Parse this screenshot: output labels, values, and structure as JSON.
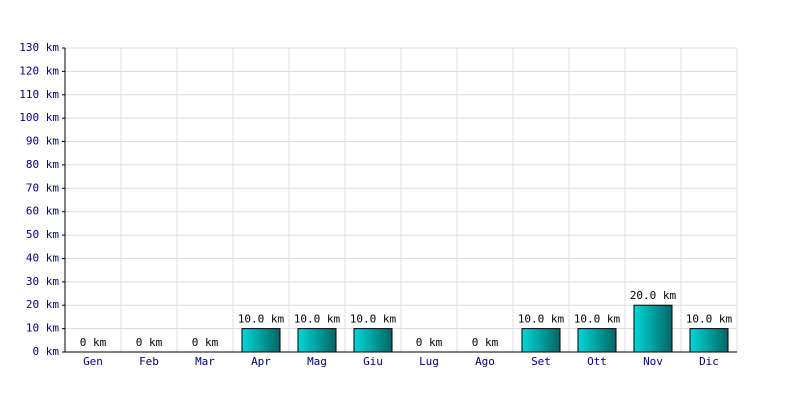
{
  "chart_data": {
    "type": "bar",
    "categories": [
      "Gen",
      "Feb",
      "Mar",
      "Apr",
      "Mag",
      "Giu",
      "Lug",
      "Ago",
      "Set",
      "Ott",
      "Nov",
      "Dic"
    ],
    "values": [
      0,
      0,
      0,
      10,
      10,
      10,
      0,
      0,
      10,
      10,
      20,
      10
    ],
    "value_labels": [
      "0 km",
      "0 km",
      "0 km",
      "10.0 km",
      "10.0 km",
      "10.0 km",
      "0 km",
      "0 km",
      "10.0 km",
      "10.0 km",
      "20.0 km",
      "10.0 km"
    ],
    "color": "#00d8d8",
    "ylim": [
      0,
      130
    ],
    "yticks": [
      {
        "value": 0,
        "label": "0 km"
      },
      {
        "value": 10,
        "label": "10 km"
      },
      {
        "value": 20,
        "label": "20 km"
      },
      {
        "value": 30,
        "label": "30 km"
      },
      {
        "value": 40,
        "label": "40 km"
      },
      {
        "value": 50,
        "label": "50 km"
      },
      {
        "value": 60,
        "label": "60 km"
      },
      {
        "value": 70,
        "label": "70 km"
      },
      {
        "value": 80,
        "label": "80 km"
      },
      {
        "value": 90,
        "label": "90 km"
      },
      {
        "value": 100,
        "label": "100 km"
      },
      {
        "value": 110,
        "label": "110 km"
      },
      {
        "value": 120,
        "label": "120 km"
      },
      {
        "value": 130,
        "label": "130 km"
      }
    ],
    "grid": true
  }
}
